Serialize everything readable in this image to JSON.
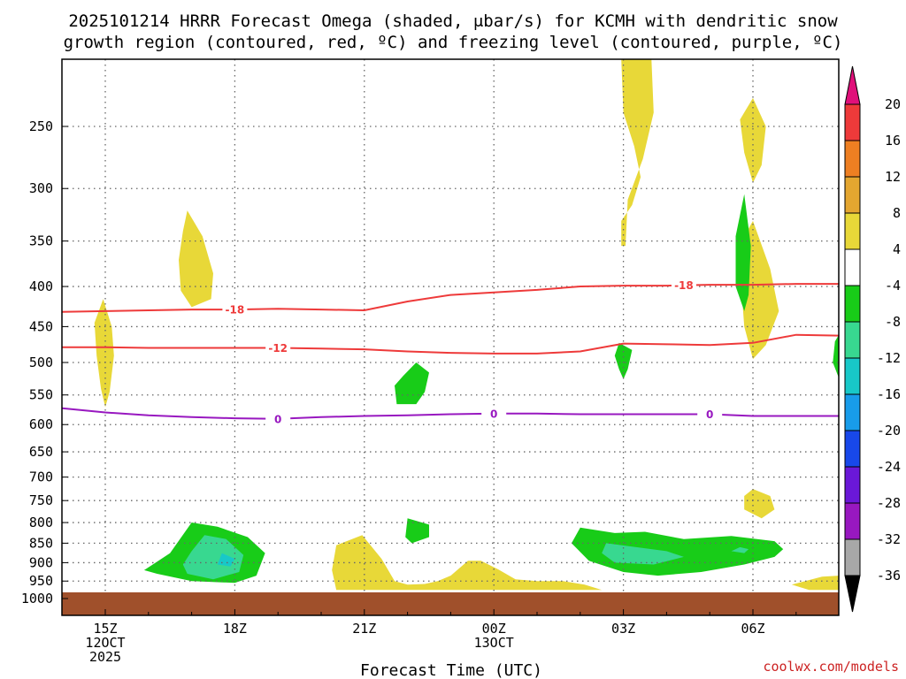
{
  "title_line1": "2025101214 HRRR Forecast Omega (shaded, μbar/s) for KCMH with dendritic snow",
  "title_line2": "growth region (contoured, red, ºC) and freezing level (contoured, purple, ºC)",
  "credit": "coolwx.com/models",
  "chart_data": {
    "type": "heatmap",
    "title": "2025101214 HRRR Forecast Omega (shaded, μbar/s) for KCMH with dendritic snow growth region (contoured, red, ºC) and freezing level (contoured, purple, ºC)",
    "xlabel": "Forecast Time (UTC)",
    "ylabel": "",
    "x_ticks": [
      {
        "hour": 0,
        "lines": [
          "15Z",
          "12OCT",
          "2025"
        ]
      },
      {
        "hour": 3,
        "lines": [
          "18Z"
        ]
      },
      {
        "hour": 6,
        "lines": [
          "21Z"
        ]
      },
      {
        "hour": 9,
        "lines": [
          "00Z",
          "13OCT"
        ]
      },
      {
        "hour": 12,
        "lines": [
          "03Z"
        ]
      },
      {
        "hour": 15,
        "lines": [
          "06Z"
        ]
      }
    ],
    "xlim_hours": [
      -1,
      17
    ],
    "y_scale": "log",
    "ylim_hPa": [
      1000,
      200
    ],
    "y_ticks": [
      250,
      300,
      350,
      400,
      450,
      500,
      550,
      600,
      650,
      700,
      750,
      800,
      850,
      900,
      950,
      1000
    ],
    "grid": true,
    "colorbar": {
      "top_arrow": "#e0107a",
      "bottom_arrow": "#000000",
      "levels": [
        {
          "from": 20,
          "to": 16,
          "color": "#ee3a3a"
        },
        {
          "from": 16,
          "to": 12,
          "color": "#ee7f22"
        },
        {
          "from": 12,
          "to": 8,
          "color": "#e4a630"
        },
        {
          "from": 8,
          "to": 4,
          "color": "#e8d838"
        },
        {
          "from": 4,
          "to": -4,
          "color": "#ffffff"
        },
        {
          "from": -4,
          "to": -8,
          "color": "#18cc18"
        },
        {
          "from": -8,
          "to": -12,
          "color": "#38d890"
        },
        {
          "from": -12,
          "to": -16,
          "color": "#18c8c8"
        },
        {
          "from": -16,
          "to": -20,
          "color": "#189cea"
        },
        {
          "from": -20,
          "to": -24,
          "color": "#1848ea"
        },
        {
          "from": -24,
          "to": -28,
          "color": "#6a18d8"
        },
        {
          "from": -28,
          "to": -32,
          "color": "#9818c0"
        },
        {
          "from": -32,
          "to": -36,
          "color": "#a8a8a8"
        }
      ],
      "labels": [
        "20",
        "16",
        "12",
        "8",
        "4",
        "-4",
        "-8",
        "-12",
        "-16",
        "-20",
        "-24",
        "-28",
        "-32",
        "-36"
      ]
    },
    "contours": [
      {
        "name": "-18",
        "color": "#ee3a3a",
        "points": [
          [
            -1,
            431
          ],
          [
            0,
            430
          ],
          [
            1,
            429
          ],
          [
            2,
            428
          ],
          [
            3,
            428
          ],
          [
            4,
            427
          ],
          [
            5,
            428
          ],
          [
            6,
            429
          ],
          [
            7,
            418
          ],
          [
            8,
            410
          ],
          [
            9,
            407
          ],
          [
            10,
            404
          ],
          [
            11,
            400
          ],
          [
            12,
            399
          ],
          [
            13,
            399
          ],
          [
            14,
            398
          ],
          [
            15,
            398
          ],
          [
            16,
            397
          ],
          [
            17,
            397
          ]
        ],
        "label_hours": [
          3,
          13.4
        ]
      },
      {
        "name": "-12",
        "color": "#ee3a3a",
        "points": [
          [
            -1,
            478
          ],
          [
            0,
            478
          ],
          [
            1,
            479
          ],
          [
            2,
            479
          ],
          [
            3,
            479
          ],
          [
            4,
            479
          ],
          [
            5,
            480
          ],
          [
            6,
            481
          ],
          [
            7,
            484
          ],
          [
            8,
            486
          ],
          [
            9,
            487
          ],
          [
            10,
            487
          ],
          [
            11,
            484
          ],
          [
            12,
            473
          ],
          [
            13,
            474
          ],
          [
            14,
            475
          ],
          [
            15,
            472
          ],
          [
            16,
            461
          ],
          [
            17,
            462
          ]
        ],
        "label_hours": [
          4
        ]
      },
      {
        "name": "0",
        "color": "#9818c0",
        "points": [
          [
            -1,
            572
          ],
          [
            0,
            579
          ],
          [
            1,
            584
          ],
          [
            2,
            587
          ],
          [
            3,
            589
          ],
          [
            4,
            590
          ],
          [
            5,
            587
          ],
          [
            6,
            585
          ],
          [
            7,
            584
          ],
          [
            8,
            582
          ],
          [
            9,
            581
          ],
          [
            10,
            581
          ],
          [
            11,
            582
          ],
          [
            12,
            582
          ],
          [
            13,
            582
          ],
          [
            14,
            582
          ],
          [
            15,
            585
          ],
          [
            16,
            585
          ],
          [
            17,
            585
          ]
        ],
        "label_hours": [
          4,
          9,
          14
        ]
      }
    ],
    "omega_regions": [
      {
        "level": 4,
        "points": [
          [
            -0.05,
            415
          ],
          [
            0.15,
            450
          ],
          [
            0.2,
            490
          ],
          [
            0.1,
            545
          ],
          [
            0.0,
            570
          ],
          [
            -0.1,
            540
          ],
          [
            -0.2,
            490
          ],
          [
            -0.25,
            445
          ]
        ]
      },
      {
        "level": 4,
        "points": [
          [
            1.9,
            320
          ],
          [
            2.25,
            345
          ],
          [
            2.5,
            385
          ],
          [
            2.45,
            415
          ],
          [
            2.0,
            425
          ],
          [
            1.75,
            405
          ],
          [
            1.7,
            370
          ],
          [
            1.8,
            340
          ]
        ]
      },
      {
        "level": 4,
        "points": [
          [
            11.95,
            200
          ],
          [
            12.65,
            200
          ],
          [
            12.7,
            240
          ],
          [
            12.45,
            275
          ],
          [
            12.1,
            310
          ],
          [
            12.05,
            355
          ],
          [
            11.95,
            355
          ],
          [
            11.95,
            330
          ],
          [
            12.2,
            315
          ],
          [
            12.4,
            290
          ],
          [
            12.25,
            265
          ],
          [
            12.0,
            240
          ]
        ]
      },
      {
        "level": 4,
        "points": [
          [
            15,
            230
          ],
          [
            15.3,
            250
          ],
          [
            15.2,
            280
          ],
          [
            15.0,
            295
          ],
          [
            14.8,
            270
          ],
          [
            14.7,
            245
          ]
        ]
      },
      {
        "level": 4,
        "points": [
          [
            15.0,
            330
          ],
          [
            15.4,
            380
          ],
          [
            15.6,
            430
          ],
          [
            15.3,
            475
          ],
          [
            15.0,
            495
          ],
          [
            14.8,
            450
          ],
          [
            14.7,
            380
          ],
          [
            14.8,
            345
          ]
        ]
      },
      {
        "level": 4,
        "points": [
          [
            15.0,
            725
          ],
          [
            15.4,
            740
          ],
          [
            15.5,
            770
          ],
          [
            15.2,
            790
          ],
          [
            14.8,
            770
          ],
          [
            14.8,
            740
          ]
        ]
      },
      {
        "level": 4,
        "points": [
          [
            5.95,
            830
          ],
          [
            6.4,
            890
          ],
          [
            6.7,
            950
          ],
          [
            7.0,
            960
          ],
          [
            7.4,
            958
          ],
          [
            7.7,
            950
          ],
          [
            8.0,
            935
          ],
          [
            8.4,
            895
          ],
          [
            8.7,
            895
          ],
          [
            9.1,
            918
          ],
          [
            9.5,
            945
          ],
          [
            10.0,
            950
          ],
          [
            10.6,
            950
          ],
          [
            11.1,
            960
          ],
          [
            11.5,
            975
          ],
          [
            5.35,
            975
          ],
          [
            5.25,
            920
          ],
          [
            5.35,
            855
          ]
        ]
      },
      {
        "level": 4,
        "points": [
          [
            17,
            935
          ],
          [
            17,
            975
          ],
          [
            16.3,
            975
          ],
          [
            15.9,
            960
          ],
          [
            16.6,
            938
          ]
        ]
      },
      {
        "level": -4,
        "points": [
          [
            2.0,
            800
          ],
          [
            2.6,
            810
          ],
          [
            3.3,
            835
          ],
          [
            3.7,
            875
          ],
          [
            3.5,
            935
          ],
          [
            3.0,
            955
          ],
          [
            2.0,
            950
          ],
          [
            1.2,
            930
          ],
          [
            0.9,
            920
          ],
          [
            1.1,
            905
          ],
          [
            1.5,
            875
          ]
        ]
      },
      {
        "level": -8,
        "points": [
          [
            2.3,
            830
          ],
          [
            2.8,
            840
          ],
          [
            3.2,
            880
          ],
          [
            3.1,
            925
          ],
          [
            2.5,
            945
          ],
          [
            1.9,
            930
          ],
          [
            1.8,
            905
          ],
          [
            2.0,
            870
          ]
        ]
      },
      {
        "level": -12,
        "points": [
          [
            2.7,
            875
          ],
          [
            3.0,
            890
          ],
          [
            2.9,
            910
          ],
          [
            2.6,
            905
          ]
        ]
      },
      {
        "level": -4,
        "points": [
          [
            7.2,
            500
          ],
          [
            7.5,
            515
          ],
          [
            7.4,
            545
          ],
          [
            7.2,
            565
          ],
          [
            6.75,
            565
          ],
          [
            6.7,
            535
          ],
          [
            6.9,
            520
          ]
        ]
      },
      {
        "level": -4,
        "points": [
          [
            7.0,
            790
          ],
          [
            7.5,
            805
          ],
          [
            7.5,
            835
          ],
          [
            7.1,
            850
          ],
          [
            6.95,
            835
          ]
        ]
      },
      {
        "level": -4,
        "points": [
          [
            11.9,
            472
          ],
          [
            12.2,
            482
          ],
          [
            12.1,
            510
          ],
          [
            12.0,
            525
          ],
          [
            11.9,
            510
          ],
          [
            11.8,
            490
          ]
        ]
      },
      {
        "level": -4,
        "points": [
          [
            14.8,
            305
          ],
          [
            14.95,
            355
          ],
          [
            14.9,
            410
          ],
          [
            14.8,
            430
          ],
          [
            14.6,
            400
          ],
          [
            14.6,
            345
          ]
        ]
      },
      {
        "level": -4,
        "points": [
          [
            17,
            460
          ],
          [
            17,
            525
          ],
          [
            16.85,
            500
          ],
          [
            16.9,
            470
          ]
        ]
      },
      {
        "level": -4,
        "points": [
          [
            11,
            812
          ],
          [
            11.8,
            825
          ],
          [
            12.5,
            822
          ],
          [
            13.4,
            840
          ],
          [
            14.5,
            832
          ],
          [
            15.5,
            845
          ],
          [
            15.7,
            865
          ],
          [
            15.5,
            885
          ],
          [
            14.8,
            905
          ],
          [
            13.8,
            925
          ],
          [
            12.8,
            935
          ],
          [
            12.0,
            925
          ],
          [
            11.2,
            895
          ],
          [
            10.8,
            850
          ]
        ]
      },
      {
        "level": -8,
        "points": [
          [
            11.6,
            850
          ],
          [
            12.3,
            860
          ],
          [
            13.0,
            870
          ],
          [
            13.4,
            885
          ],
          [
            12.7,
            905
          ],
          [
            11.8,
            900
          ],
          [
            11.5,
            875
          ]
        ]
      },
      {
        "level": -8,
        "points": [
          [
            14.7,
            860
          ],
          [
            14.9,
            865
          ],
          [
            14.8,
            875
          ],
          [
            14.5,
            870
          ]
        ]
      }
    ]
  }
}
